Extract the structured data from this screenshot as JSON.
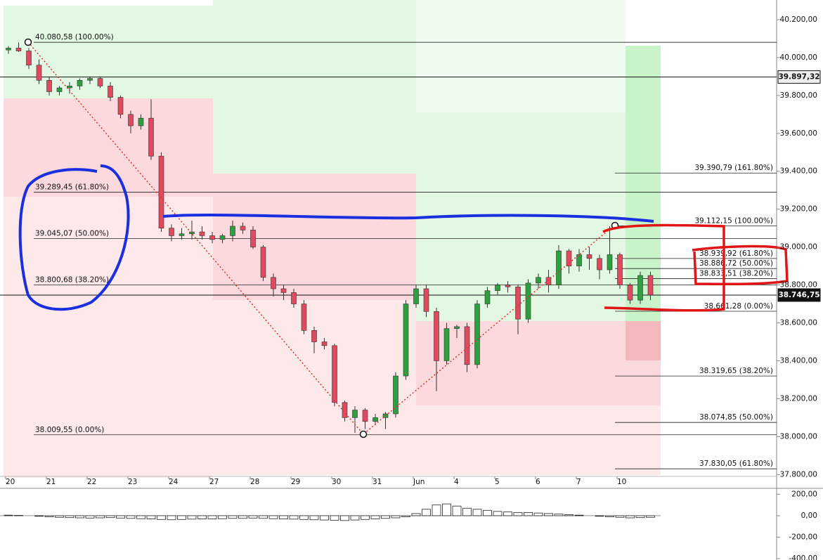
{
  "chart_data": [
    {
      "type": "candlestick",
      "categories": [
        "20",
        null,
        null,
        null,
        "21",
        null,
        null,
        null,
        "22",
        null,
        null,
        null,
        "23",
        null,
        null,
        null,
        "24",
        null,
        null,
        null,
        "27",
        null,
        null,
        null,
        "28",
        null,
        null,
        null,
        "29",
        null,
        null,
        null,
        "30",
        null,
        null,
        null,
        "31",
        null,
        null,
        null,
        "Jun",
        null,
        null,
        null,
        "4",
        null,
        null,
        null,
        "5",
        null,
        null,
        null,
        "6",
        null,
        null,
        null,
        "7",
        null,
        null,
        null,
        "10",
        null,
        null,
        null
      ],
      "ohlc": [
        [
          40040,
          40060,
          40020,
          40050
        ],
        [
          40050,
          40080,
          40030,
          40035
        ],
        [
          40035,
          40050,
          39940,
          39960
        ],
        [
          39960,
          39990,
          39860,
          39880
        ],
        [
          39880,
          39900,
          39800,
          39820
        ],
        [
          39820,
          39850,
          39800,
          39840
        ],
        [
          39840,
          39870,
          39810,
          39850
        ],
        [
          39850,
          39890,
          39830,
          39880
        ],
        [
          39880,
          39900,
          39860,
          39890
        ],
        [
          39890,
          39900,
          39840,
          39850
        ],
        [
          39850,
          39870,
          39770,
          39790
        ],
        [
          39790,
          39800,
          39680,
          39700
        ],
        [
          39700,
          39720,
          39600,
          39640
        ],
        [
          39640,
          39700,
          39620,
          39680
        ],
        [
          39680,
          39780,
          39460,
          39480
        ],
        [
          39480,
          39500,
          39080,
          39100
        ],
        [
          39100,
          39120,
          39030,
          39060
        ],
        [
          39060,
          39100,
          39040,
          39070
        ],
        [
          39070,
          39140,
          39040,
          39080
        ],
        [
          39080,
          39110,
          39040,
          39060
        ],
        [
          39060,
          39080,
          39020,
          39040
        ],
        [
          39040,
          39070,
          39020,
          39060
        ],
        [
          39060,
          39140,
          39030,
          39110
        ],
        [
          39110,
          39130,
          39070,
          39090
        ],
        [
          39090,
          39110,
          38990,
          39000
        ],
        [
          39000,
          39010,
          38820,
          38840
        ],
        [
          38840,
          38860,
          38740,
          38780
        ],
        [
          38780,
          38800,
          38720,
          38760
        ],
        [
          38760,
          38780,
          38680,
          38700
        ],
        [
          38700,
          38720,
          38540,
          38560
        ],
        [
          38560,
          38580,
          38440,
          38500
        ],
        [
          38500,
          38520,
          38460,
          38480
        ],
        [
          38480,
          38490,
          38160,
          38180
        ],
        [
          38180,
          38190,
          38080,
          38100
        ],
        [
          38100,
          38160,
          38020,
          38140
        ],
        [
          38140,
          38150,
          38040,
          38080
        ],
        [
          38080,
          38120,
          38060,
          38100
        ],
        [
          38100,
          38130,
          38040,
          38120
        ],
        [
          38120,
          38340,
          38100,
          38320
        ],
        [
          38320,
          38720,
          38300,
          38700
        ],
        [
          38700,
          38800,
          38680,
          38780
        ],
        [
          38780,
          38800,
          38630,
          38660
        ],
        [
          38660,
          38680,
          38240,
          38400
        ],
        [
          38400,
          38600,
          38380,
          38570
        ],
        [
          38570,
          38590,
          38520,
          38580
        ],
        [
          38580,
          38600,
          38340,
          38380
        ],
        [
          38380,
          38720,
          38360,
          38700
        ],
        [
          38700,
          38790,
          38680,
          38770
        ],
        [
          38770,
          38810,
          38750,
          38800
        ],
        [
          38800,
          38820,
          38760,
          38790
        ],
        [
          38790,
          38800,
          38540,
          38620
        ],
        [
          38620,
          38830,
          38600,
          38810
        ],
        [
          38810,
          38860,
          38780,
          38840
        ],
        [
          38840,
          38880,
          38760,
          38800
        ],
        [
          38800,
          39010,
          38780,
          38980
        ],
        [
          38980,
          38990,
          38860,
          38900
        ],
        [
          38900,
          38990,
          38870,
          38960
        ],
        [
          38960,
          39000,
          38880,
          38940
        ],
        [
          38940,
          38960,
          38830,
          38880
        ],
        [
          38880,
          39110,
          38860,
          38960
        ],
        [
          38960,
          38970,
          38780,
          38800
        ],
        [
          38800,
          38810,
          38700,
          38720
        ],
        [
          38720,
          38870,
          38700,
          38850
        ],
        [
          38850,
          38870,
          38720,
          38747
        ]
      ],
      "up_color": "#2e9e3e",
      "down_color": "#e04a5f",
      "ylim": [
        37790,
        40300
      ],
      "yticks": [
        {
          "value": 40200,
          "label": "40.200,00"
        },
        {
          "value": 40000,
          "label": "40.000,00"
        },
        {
          "value": 39800,
          "label": "39.800,00"
        },
        {
          "value": 39600,
          "label": "39.600,00"
        },
        {
          "value": 39400,
          "label": "39.400,00"
        },
        {
          "value": 39200,
          "label": "39.200,00"
        },
        {
          "value": 39000,
          "label": "39.000,00"
        },
        {
          "value": 38800,
          "label": "38.800,00"
        },
        {
          "value": 38600,
          "label": "38.600,00"
        },
        {
          "value": 38400,
          "label": "38.400,00"
        },
        {
          "value": 38200,
          "label": "38.200,00"
        },
        {
          "value": 38000,
          "label": "38.000,00"
        },
        {
          "value": 37800,
          "label": "37.800,00"
        }
      ],
      "price_tags": [
        {
          "value": 39897.32,
          "label": "39.897,32"
        },
        {
          "value": 38746.75,
          "label": "38.746,75"
        }
      ],
      "fib_left": [
        {
          "value": 40080.58,
          "label": "40.080,58 (100.00%)"
        },
        {
          "value": 39289.45,
          "label": "39.289,45 (61.80%)"
        },
        {
          "value": 39045.07,
          "label": "39.045,07 (50.00%)"
        },
        {
          "value": 38800.68,
          "label": "38.800,68 (38.20%)"
        },
        {
          "value": 38009.55,
          "label": "38.009,55 (0.00%)"
        }
      ],
      "fib_right": [
        {
          "value": 39390.79,
          "label": "39.390,79 (161.80%)"
        },
        {
          "value": 39112.15,
          "label": "39.112,15 (100.00%)"
        },
        {
          "value": 38939.92,
          "label": "38.939,92 (61.80%)"
        },
        {
          "value": 38886.72,
          "label": "38.886,72 (50.00%)"
        },
        {
          "value": 38833.51,
          "label": "38.833,51 (38.20%)"
        },
        {
          "value": 38661.28,
          "label": "38.661,28 (0.00%)"
        },
        {
          "value": 38319.65,
          "label": "38.319,65 (38.20%)"
        },
        {
          "value": 38074.85,
          "label": "38.074,85 (50.00%)"
        },
        {
          "value": 37830.05,
          "label": "37.830,05 (61.80%)"
        }
      ]
    },
    {
      "type": "histogram",
      "values": [
        5,
        3,
        0,
        -5,
        -10,
        -15,
        -18,
        -20,
        -22,
        -20,
        -18,
        -22,
        -25,
        -28,
        -30,
        -35,
        -38,
        -35,
        -32,
        -30,
        -30,
        -28,
        -25,
        -25,
        -22,
        -25,
        -28,
        -30,
        -32,
        -35,
        -38,
        -40,
        -42,
        -45,
        -40,
        -35,
        -30,
        -25,
        -20,
        -10,
        20,
        60,
        100,
        110,
        90,
        70,
        60,
        50,
        40,
        35,
        30,
        30,
        25,
        20,
        15,
        10,
        5,
        0,
        -5,
        -10,
        -15,
        -20,
        -18,
        -15
      ],
      "ylim": [
        -413,
        242
      ],
      "yticks": [
        {
          "value": 200,
          "label": "200,00"
        },
        {
          "value": 0,
          "label": "0,00"
        },
        {
          "value": -200,
          "label": "-200,00"
        },
        {
          "value": -400,
          "label": "-400,00"
        }
      ]
    }
  ]
}
